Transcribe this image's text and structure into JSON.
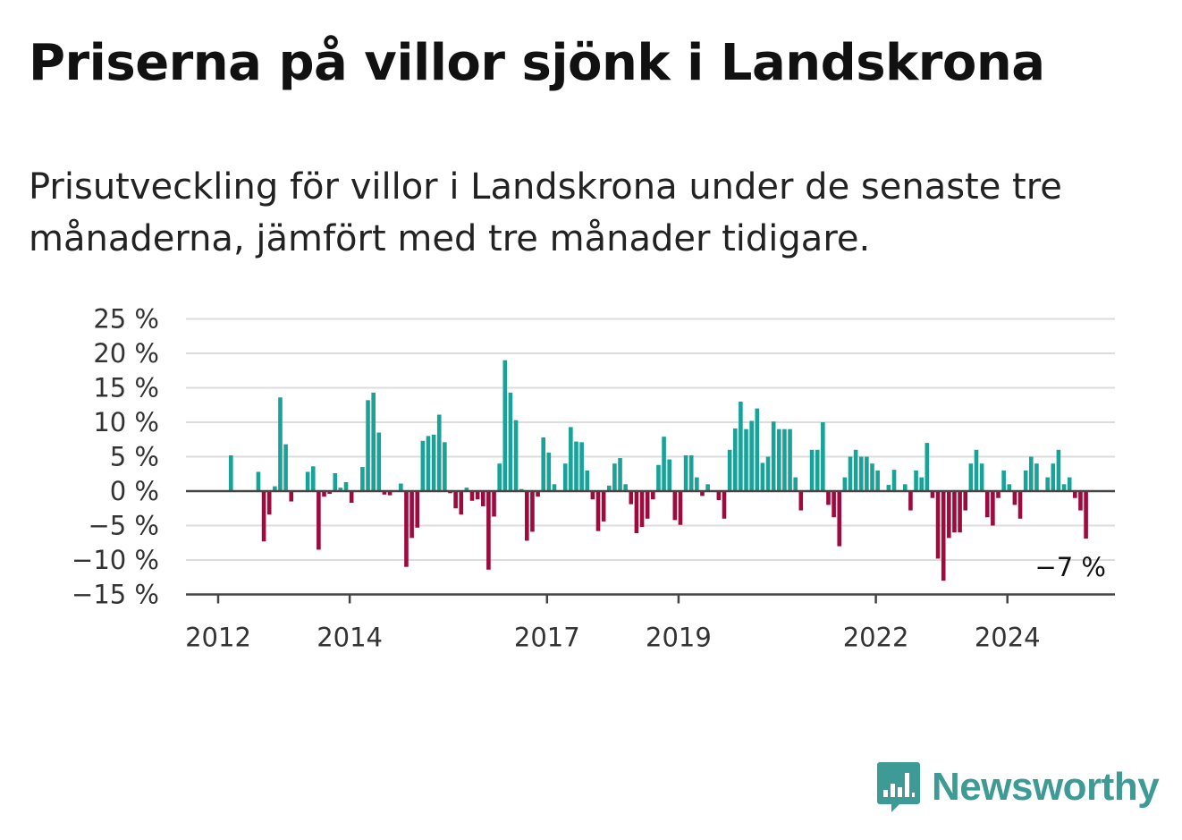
{
  "title": "Priserna på villor sjönk i Landskrona",
  "subtitle": "Prisutveckling för villor i Landskrona under de senaste tre månaderna, jämfört med tre månader tidigare.",
  "logo": {
    "text": "Newsworthy",
    "icon": "bar-chart-speech-bubble-icon",
    "color": "#3d9a94"
  },
  "chart_data": {
    "type": "bar",
    "x_start": "2012-01",
    "x_step": "month",
    "values": [
      5.2,
      0,
      0,
      0,
      0,
      2.8,
      -7.3,
      -3.4,
      0.7,
      13.6,
      6.8,
      -1.5,
      0,
      0,
      2.8,
      3.6,
      -8.5,
      -0.8,
      -0.4,
      2.6,
      0.5,
      1.3,
      -1.7,
      0,
      3.5,
      13.2,
      14.3,
      8.5,
      -0.5,
      -0.6,
      0,
      1.1,
      -11,
      -6.8,
      -5.3,
      7.3,
      8.0,
      8.2,
      11.1,
      7.1,
      -0.3,
      -2.5,
      -3.4,
      0.5,
      -1.4,
      -1.2,
      -2.2,
      -11.4,
      -3.7,
      4.0,
      19.0,
      14.3,
      10.3,
      0.3,
      -7.2,
      -5.9,
      -0.8,
      7.8,
      5.6,
      1.0,
      0,
      4.0,
      9.3,
      7.2,
      7.1,
      3.0,
      -1.2,
      -5.8,
      -4.4,
      0.8,
      4.0,
      4.8,
      1.0,
      -1.9,
      -6.1,
      -5.2,
      -4.0,
      -1.2,
      3.8,
      7.9,
      4.6,
      -4.2,
      -4.9,
      5.2,
      5.2,
      2.0,
      -0.7,
      1.0,
      0,
      -1.3,
      -4.0,
      6.0,
      9.1,
      13.0,
      9.0,
      10.2,
      12.0,
      4.1,
      5.0,
      10.1,
      9.0,
      9.0,
      9.0,
      2.0,
      -2.8,
      0,
      6.0,
      6.0,
      10.0,
      -2.0,
      -3.8,
      -8.0,
      2.0,
      5.0,
      6.0,
      5.0,
      5.0,
      4.0,
      3.0,
      0,
      0.9,
      3.1,
      0,
      1.0,
      -2.8,
      3.0,
      2.0,
      7.0,
      -1.0,
      -9.8,
      -13.0,
      -6.8,
      -6.0,
      -6.0,
      -2.8,
      4.0,
      6.0,
      4.0,
      -3.8,
      -5.0,
      -1.0,
      3.0,
      1.0,
      -2.0,
      -4.0,
      3.0,
      5.0,
      4.0,
      0,
      2.0,
      4.0,
      6.0,
      1.0,
      2.0,
      -1.0,
      -2.8,
      -6.9
    ],
    "x_ticks": [
      "2012",
      "2014",
      "2017",
      "2019",
      "2022",
      "2024"
    ],
    "y_ticks": [
      "25 %",
      "20 %",
      "15 %",
      "10 %",
      "5 %",
      "0 %",
      "−5 %",
      "−10 %",
      "−15 %"
    ],
    "ylim": [
      -15,
      25
    ],
    "last_value_label": "−7 %",
    "positive_color": "#17a398",
    "negative_color": "#9e0a3c",
    "grid": true
  }
}
